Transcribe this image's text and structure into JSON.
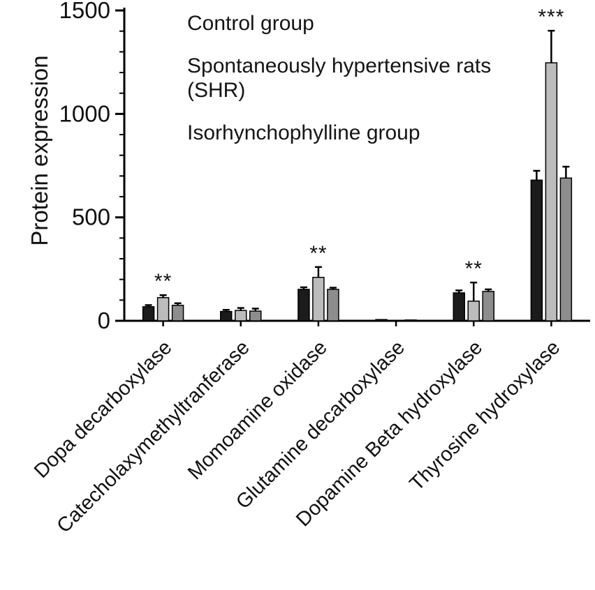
{
  "chart_data": {
    "type": "bar",
    "title": "",
    "ylabel": "Protein expression",
    "xlabel": "",
    "ylim": [
      0,
      1500
    ],
    "yticks": [
      0,
      500,
      1000,
      1500
    ],
    "minor_tick_interval": 100,
    "grid": false,
    "legend_position": "top-inside",
    "categories": [
      "Dopa decarboxylase",
      "Catecholaxymethyltranferase",
      "Momoamine oxidase",
      "Glutamine decarboxylase",
      "Dopamine Beta hydroxylase",
      "Thyrosine hydroxylase"
    ],
    "series": [
      {
        "name": "Control group",
        "color": "#1b1b1b",
        "values": [
          68,
          45,
          152,
          6,
          135,
          680
        ],
        "errors": [
          8,
          8,
          10,
          0,
          12,
          45
        ]
      },
      {
        "name": "Spontaneously hypertensive rats (SHR)",
        "color": "#bcbcbc",
        "values": [
          112,
          50,
          210,
          2,
          95,
          1247
        ],
        "errors": [
          12,
          12,
          50,
          0,
          90,
          155
        ]
      },
      {
        "name": "Isorhynchophylline group",
        "color": "#8d8d8d",
        "values": [
          75,
          47,
          152,
          4,
          142,
          690
        ],
        "errors": [
          10,
          12,
          8,
          0,
          10,
          55
        ]
      }
    ],
    "annotations": [
      {
        "category_index": 0,
        "series_index": 1,
        "text": "**"
      },
      {
        "category_index": 2,
        "series_index": 1,
        "text": "**"
      },
      {
        "category_index": 4,
        "series_index": 1,
        "text": "**"
      },
      {
        "category_index": 5,
        "series_index": 1,
        "text": "***"
      }
    ]
  }
}
